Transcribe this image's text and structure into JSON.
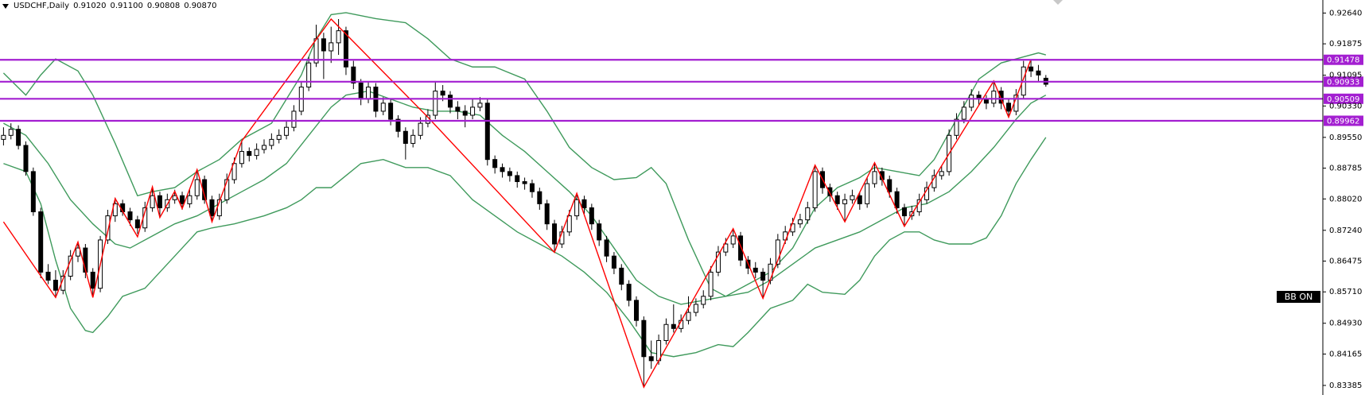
{
  "chart_data": {
    "type": "candlestick",
    "title": "USDCHF,Daily",
    "header_ohlc": {
      "values": [
        0.9102,
        0.911,
        0.90808,
        0.9087
      ],
      "value_labels": [
        "0.91020",
        "0.91100",
        "0.90808",
        "0.90870"
      ]
    },
    "indicator_label": "BB ON",
    "ylim": [
      0.83147,
      0.92964
    ],
    "yticks": [
      {
        "value": 0.9264,
        "label": "0.92640"
      },
      0.91875,
      0.91095,
      {
        "value": 0.9033,
        "label": "0.90330"
      },
      {
        "value": 0.8955,
        "label": "0.89550"
      },
      0.88785,
      {
        "value": 0.8802,
        "label": "0.88020"
      },
      {
        "value": 0.8724,
        "label": "0.87240"
      },
      0.86475,
      {
        "value": 0.8571,
        "label": "0.85710"
      },
      {
        "value": 0.8493,
        "label": "0.84930"
      },
      0.84165,
      0.83385
    ],
    "candle_colors": {
      "up": "#ffffff",
      "down": "#000000",
      "outline": "#000000"
    },
    "candles": [
      [
        0.895,
        0.898,
        0.8935,
        0.896
      ],
      [
        0.896,
        0.899,
        0.895,
        0.8975
      ],
      [
        0.8975,
        0.8985,
        0.8925,
        0.8935
      ],
      [
        0.8935,
        0.8945,
        0.886,
        0.887
      ],
      [
        0.887,
        0.888,
        0.876,
        0.877
      ],
      [
        0.877,
        0.878,
        0.8605,
        0.862
      ],
      [
        0.862,
        0.864,
        0.859,
        0.86
      ],
      [
        0.86,
        0.8625,
        0.856,
        0.8575
      ],
      [
        0.8575,
        0.8625,
        0.8565,
        0.861
      ],
      [
        0.861,
        0.8675,
        0.86,
        0.866
      ],
      [
        0.866,
        0.8695,
        0.8645,
        0.868
      ],
      [
        0.868,
        0.869,
        0.8605,
        0.862
      ],
      [
        0.862,
        0.863,
        0.856,
        0.858
      ],
      [
        0.858,
        0.871,
        0.857,
        0.87
      ],
      [
        0.87,
        0.8775,
        0.869,
        0.876
      ],
      [
        0.876,
        0.8805,
        0.8745,
        0.879
      ],
      [
        0.879,
        0.88,
        0.876,
        0.877
      ],
      [
        0.877,
        0.878,
        0.8735,
        0.875
      ],
      [
        0.875,
        0.876,
        0.8715,
        0.873
      ],
      [
        0.873,
        0.8795,
        0.872,
        0.878
      ],
      [
        0.878,
        0.883,
        0.877,
        0.881
      ],
      [
        0.881,
        0.882,
        0.876,
        0.878
      ],
      [
        0.878,
        0.8815,
        0.877,
        0.88
      ],
      [
        0.88,
        0.8825,
        0.879,
        0.881
      ],
      [
        0.881,
        0.882,
        0.8775,
        0.879
      ],
      [
        0.879,
        0.8825,
        0.878,
        0.881
      ],
      [
        0.881,
        0.8875,
        0.88,
        0.885
      ],
      [
        0.885,
        0.886,
        0.879,
        0.88
      ],
      [
        0.88,
        0.881,
        0.8745,
        0.876
      ],
      [
        0.876,
        0.8815,
        0.875,
        0.88
      ],
      [
        0.88,
        0.8865,
        0.879,
        0.885
      ],
      [
        0.885,
        0.8905,
        0.884,
        0.889
      ],
      [
        0.889,
        0.8945,
        0.888,
        0.892
      ],
      [
        0.892,
        0.893,
        0.8895,
        0.891
      ],
      [
        0.891,
        0.894,
        0.89,
        0.8925
      ],
      [
        0.8925,
        0.895,
        0.8915,
        0.8935
      ],
      [
        0.8935,
        0.8965,
        0.8925,
        0.895
      ],
      [
        0.895,
        0.8975,
        0.894,
        0.896
      ],
      [
        0.896,
        0.8995,
        0.895,
        0.898
      ],
      [
        0.898,
        0.9035,
        0.897,
        0.902
      ],
      [
        0.902,
        0.9095,
        0.901,
        0.908
      ],
      [
        0.908,
        0.9155,
        0.907,
        0.914
      ],
      [
        0.914,
        0.9235,
        0.913,
        0.92
      ],
      [
        0.92,
        0.9215,
        0.91,
        0.917
      ],
      [
        0.917,
        0.923,
        0.914,
        0.919
      ],
      [
        0.919,
        0.9249,
        0.916,
        0.922
      ],
      [
        0.922,
        0.923,
        0.911,
        0.913
      ],
      [
        0.913,
        0.9145,
        0.9075,
        0.909
      ],
      [
        0.909,
        0.91,
        0.9035,
        0.905
      ],
      [
        0.905,
        0.9095,
        0.904,
        0.908
      ],
      [
        0.908,
        0.909,
        0.9005,
        0.902
      ],
      [
        0.902,
        0.9055,
        0.901,
        0.904
      ],
      [
        0.904,
        0.905,
        0.8985,
        0.9
      ],
      [
        0.9,
        0.901,
        0.8955,
        0.897
      ],
      [
        0.897,
        0.898,
        0.89,
        0.894
      ],
      [
        0.894,
        0.8975,
        0.893,
        0.896
      ],
      [
        0.896,
        0.9005,
        0.895,
        0.899
      ],
      [
        0.899,
        0.9025,
        0.898,
        0.901
      ],
      [
        0.901,
        0.9095,
        0.9,
        0.907
      ],
      [
        0.907,
        0.9085,
        0.9045,
        0.906
      ],
      [
        0.906,
        0.907,
        0.9015,
        0.903
      ],
      [
        0.903,
        0.9045,
        0.9,
        0.902
      ],
      [
        0.902,
        0.9035,
        0.898,
        0.901
      ],
      [
        0.901,
        0.905,
        0.9,
        0.903
      ],
      [
        0.903,
        0.9055,
        0.902,
        0.904
      ],
      [
        0.904,
        0.905,
        0.8885,
        0.89
      ],
      [
        0.89,
        0.891,
        0.8865,
        0.888
      ],
      [
        0.888,
        0.889,
        0.8855,
        0.887
      ],
      [
        0.887,
        0.888,
        0.8845,
        0.886
      ],
      [
        0.886,
        0.887,
        0.883,
        0.8845
      ],
      [
        0.8845,
        0.8855,
        0.8825,
        0.884
      ],
      [
        0.884,
        0.885,
        0.8805,
        0.882
      ],
      [
        0.882,
        0.883,
        0.8775,
        0.879
      ],
      [
        0.879,
        0.88,
        0.8725,
        0.874
      ],
      [
        0.874,
        0.875,
        0.8669,
        0.869
      ],
      [
        0.869,
        0.8735,
        0.868,
        0.872
      ],
      [
        0.872,
        0.8775,
        0.871,
        0.876
      ],
      [
        0.876,
        0.8816,
        0.875,
        0.88
      ],
      [
        0.88,
        0.881,
        0.8765,
        0.878
      ],
      [
        0.878,
        0.879,
        0.8725,
        0.874
      ],
      [
        0.874,
        0.875,
        0.8685,
        0.87
      ],
      [
        0.87,
        0.871,
        0.8645,
        0.866
      ],
      [
        0.866,
        0.867,
        0.8615,
        0.863
      ],
      [
        0.863,
        0.864,
        0.8575,
        0.859
      ],
      [
        0.859,
        0.86,
        0.8535,
        0.855
      ],
      [
        0.855,
        0.856,
        0.8485,
        0.85
      ],
      [
        0.85,
        0.851,
        0.8334,
        0.841
      ],
      [
        0.841,
        0.845,
        0.838,
        0.84
      ],
      [
        0.84,
        0.8465,
        0.839,
        0.845
      ],
      [
        0.845,
        0.8505,
        0.844,
        0.849
      ],
      [
        0.849,
        0.854,
        0.847,
        0.848
      ],
      [
        0.848,
        0.8515,
        0.847,
        0.85
      ],
      [
        0.85,
        0.856,
        0.849,
        0.852
      ],
      [
        0.852,
        0.8555,
        0.851,
        0.854
      ],
      [
        0.854,
        0.8575,
        0.853,
        0.856
      ],
      [
        0.856,
        0.8635,
        0.855,
        0.862
      ],
      [
        0.862,
        0.8685,
        0.861,
        0.867
      ],
      [
        0.867,
        0.8705,
        0.866,
        0.869
      ],
      [
        0.869,
        0.8728,
        0.868,
        0.871
      ],
      [
        0.871,
        0.872,
        0.8635,
        0.865
      ],
      [
        0.865,
        0.866,
        0.8615,
        0.863
      ],
      [
        0.863,
        0.8645,
        0.8605,
        0.862
      ],
      [
        0.862,
        0.863,
        0.8555,
        0.86
      ],
      [
        0.86,
        0.8655,
        0.859,
        0.864
      ],
      [
        0.864,
        0.8715,
        0.863,
        0.87
      ],
      [
        0.87,
        0.8735,
        0.869,
        0.872
      ],
      [
        0.872,
        0.8755,
        0.871,
        0.874
      ],
      [
        0.874,
        0.8765,
        0.873,
        0.875
      ],
      [
        0.875,
        0.8795,
        0.874,
        0.878
      ],
      [
        0.878,
        0.8886,
        0.877,
        0.887
      ],
      [
        0.887,
        0.888,
        0.8815,
        0.883
      ],
      [
        0.883,
        0.884,
        0.8795,
        0.881
      ],
      [
        0.881,
        0.882,
        0.8775,
        0.879
      ],
      [
        0.879,
        0.8815,
        0.8745,
        0.88
      ],
      [
        0.88,
        0.8825,
        0.879,
        0.881
      ],
      [
        0.881,
        0.882,
        0.8775,
        0.879
      ],
      [
        0.879,
        0.8855,
        0.878,
        0.884
      ],
      [
        0.884,
        0.8892,
        0.883,
        0.887
      ],
      [
        0.887,
        0.888,
        0.8835,
        0.885
      ],
      [
        0.885,
        0.886,
        0.8805,
        0.882
      ],
      [
        0.882,
        0.883,
        0.8765,
        0.878
      ],
      [
        0.878,
        0.879,
        0.8734,
        0.876
      ],
      [
        0.876,
        0.8785,
        0.875,
        0.877
      ],
      [
        0.877,
        0.8815,
        0.876,
        0.88
      ],
      [
        0.88,
        0.8845,
        0.879,
        0.883
      ],
      [
        0.883,
        0.8875,
        0.882,
        0.886
      ],
      [
        0.886,
        0.8885,
        0.885,
        0.887
      ],
      [
        0.887,
        0.8975,
        0.886,
        0.896
      ],
      [
        0.896,
        0.9015,
        0.895,
        0.9
      ],
      [
        0.9,
        0.9045,
        0.899,
        0.903
      ],
      [
        0.903,
        0.9075,
        0.902,
        0.906
      ],
      [
        0.906,
        0.907,
        0.9035,
        0.905
      ],
      [
        0.905,
        0.906,
        0.9025,
        0.904
      ],
      [
        0.904,
        0.9095,
        0.903,
        0.907
      ],
      [
        0.907,
        0.908,
        0.9025,
        0.904
      ],
      [
        0.904,
        0.905,
        0.9005,
        0.902
      ],
      [
        0.902,
        0.9075,
        0.901,
        0.906
      ],
      [
        0.906,
        0.9145,
        0.905,
        0.913
      ],
      [
        0.913,
        0.9149,
        0.9105,
        0.912
      ],
      [
        0.912,
        0.9135,
        0.9095,
        0.911
      ],
      [
        0.9102,
        0.911,
        0.90808,
        0.9087
      ]
    ],
    "bands": [
      {
        "color": "#3f9a5c",
        "x": [
          0,
          3,
          5,
          7,
          10,
          12,
          15,
          18,
          20,
          23,
          26,
          29,
          32,
          36,
          40,
          42,
          44,
          46,
          50,
          54,
          57,
          60,
          63,
          66,
          70,
          73,
          76,
          79,
          82,
          85,
          87,
          89,
          92,
          95,
          97,
          100,
          103,
          106,
          109,
          112,
          115,
          117,
          120,
          123,
          125,
          128,
          131,
          134,
          137,
          139,
          140
        ],
        "values": [
          0.9115,
          0.906,
          0.911,
          0.915,
          0.912,
          0.906,
          0.894,
          0.881,
          0.882,
          0.883,
          0.887,
          0.89,
          0.895,
          0.899,
          0.911,
          0.92,
          0.926,
          0.9265,
          0.925,
          0.924,
          0.92,
          0.915,
          0.913,
          0.913,
          0.91,
          0.902,
          0.893,
          0.888,
          0.885,
          0.8855,
          0.888,
          0.884,
          0.87,
          0.858,
          0.856,
          0.859,
          0.862,
          0.868,
          0.878,
          0.883,
          0.8855,
          0.888,
          0.887,
          0.886,
          0.89,
          0.9,
          0.91,
          0.914,
          0.9155,
          0.9165,
          0.916
        ]
      },
      {
        "color": "#3f9a5c",
        "x": [
          0,
          3,
          6,
          9,
          12,
          15,
          17,
          20,
          23,
          26,
          29,
          32,
          35,
          38,
          41,
          44,
          46,
          49,
          52,
          55,
          58,
          61,
          64,
          67,
          70,
          73,
          76,
          79,
          82,
          85,
          88,
          91,
          94,
          97,
          100,
          103,
          106,
          109,
          112,
          115,
          118,
          121,
          124,
          127,
          130,
          133,
          136,
          138,
          140
        ],
        "values": [
          0.899,
          0.896,
          0.889,
          0.88,
          0.874,
          0.869,
          0.868,
          0.871,
          0.874,
          0.876,
          0.879,
          0.882,
          0.885,
          0.889,
          0.896,
          0.903,
          0.906,
          0.907,
          0.905,
          0.903,
          0.902,
          0.902,
          0.901,
          0.896,
          0.892,
          0.887,
          0.882,
          0.876,
          0.868,
          0.86,
          0.856,
          0.854,
          0.855,
          0.856,
          0.857,
          0.86,
          0.864,
          0.868,
          0.87,
          0.872,
          0.875,
          0.878,
          0.879,
          0.882,
          0.887,
          0.893,
          0.9,
          0.904,
          0.906
        ]
      },
      {
        "color": "#3f9a5c",
        "x": [
          0,
          3,
          5,
          7,
          9,
          11,
          12,
          14,
          16,
          19,
          21,
          24,
          26,
          28,
          31,
          35,
          38,
          40,
          42,
          44,
          46,
          48,
          51,
          54,
          57,
          60,
          63,
          66,
          69,
          72,
          75,
          78,
          81,
          84,
          87,
          90,
          93,
          96,
          98,
          100,
          103,
          106,
          108,
          110,
          113,
          115,
          117,
          119,
          121,
          123,
          125,
          127,
          130,
          132,
          134,
          136,
          138,
          140
        ],
        "values": [
          0.889,
          0.887,
          0.879,
          0.865,
          0.853,
          0.8475,
          0.847,
          0.851,
          0.856,
          0.858,
          0.862,
          0.868,
          0.872,
          0.873,
          0.874,
          0.876,
          0.878,
          0.88,
          0.883,
          0.883,
          0.886,
          0.889,
          0.89,
          0.888,
          0.888,
          0.886,
          0.88,
          0.876,
          0.872,
          0.869,
          0.866,
          0.862,
          0.857,
          0.85,
          0.842,
          0.841,
          0.842,
          0.844,
          0.8435,
          0.847,
          0.853,
          0.855,
          0.859,
          0.857,
          0.8565,
          0.86,
          0.866,
          0.87,
          0.872,
          0.872,
          0.87,
          0.869,
          0.869,
          0.8705,
          0.876,
          0.884,
          0.89,
          0.8955
        ]
      }
    ],
    "zigzag": {
      "color": "#ff0000",
      "x": [
        0,
        7,
        10,
        12,
        15,
        18,
        20,
        21,
        23,
        24,
        26,
        28,
        32,
        44,
        57,
        74,
        77,
        86,
        98,
        102,
        109,
        113,
        117,
        121,
        133,
        135,
        138
      ],
      "values": [
        0.8745,
        0.8557,
        0.8695,
        0.8557,
        0.8803,
        0.8708,
        0.8832,
        0.8756,
        0.8821,
        0.8778,
        0.8875,
        0.8745,
        0.8946,
        0.9249,
        0.9005,
        0.8669,
        0.8816,
        0.8334,
        0.8728,
        0.8555,
        0.8886,
        0.8745,
        0.8892,
        0.8734,
        0.9095,
        0.9005,
        0.9149
      ]
    },
    "levels": {
      "color": "#a31fd1",
      "values": [
        0.91478,
        0.90933,
        0.90509,
        0.89962
      ]
    }
  }
}
